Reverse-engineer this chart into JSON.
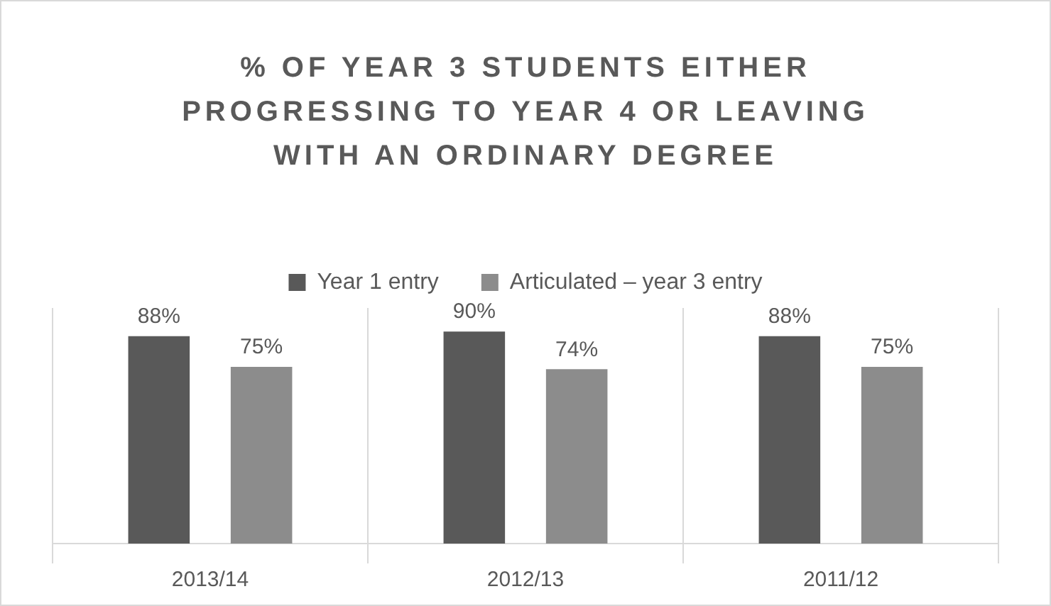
{
  "chart_data": {
    "type": "bar",
    "title": "% OF YEAR 3 STUDENTS EITHER PROGRESSING TO YEAR 4 OR LEAVING WITH AN ORDINARY DEGREE",
    "categories": [
      "2013/14",
      "2012/13",
      "2011/12"
    ],
    "series": [
      {
        "name": "Year 1 entry",
        "color": "#595959",
        "values": [
          88,
          90,
          88
        ],
        "value_labels": [
          "88%",
          "90%",
          "88%"
        ]
      },
      {
        "name": "Articulated – year 3 entry",
        "color": "#8c8c8c",
        "values": [
          75,
          74,
          75
        ],
        "value_labels": [
          "75%",
          "74%",
          "75%"
        ]
      }
    ],
    "grid": "x",
    "legend": "top"
  }
}
